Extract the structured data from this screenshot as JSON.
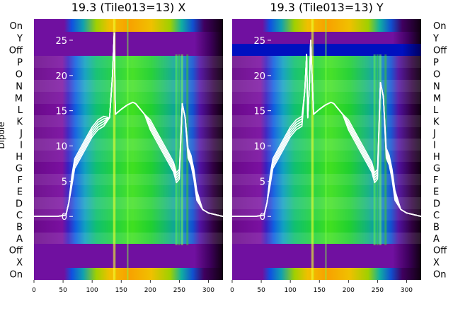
{
  "chart_data": [
    {
      "type": "heatmap",
      "title": "19.3 (Tile013=13) X",
      "ylabel": "Dipole",
      "dipole_labels": [
        "On",
        "Y",
        "Off",
        "P",
        "O",
        "N",
        "M",
        "L",
        "K",
        "J",
        "I",
        "H",
        "G",
        "F",
        "E",
        "D",
        "C",
        "B",
        "A",
        "Off",
        "X",
        "On"
      ],
      "xticks": [
        0,
        50,
        100,
        150,
        200,
        250,
        300
      ],
      "xlim": [
        0,
        325
      ],
      "overlay_yticks": [
        0,
        5,
        10,
        15,
        20,
        25
      ],
      "overlay_ylim": [
        -9,
        28
      ],
      "overlay_line": {
        "color": "#ffffff",
        "x": [
          0,
          20,
          40,
          55,
          60,
          65,
          70,
          80,
          90,
          100,
          110,
          120,
          130,
          135,
          138,
          140,
          150,
          160,
          170,
          175,
          180,
          190,
          200,
          210,
          220,
          230,
          240,
          245,
          250,
          255,
          260,
          265,
          270,
          275,
          280,
          290,
          300,
          325
        ],
        "y": [
          0,
          0,
          0,
          0.2,
          2,
          5,
          7.5,
          9,
          10.5,
          12,
          13,
          13.5,
          14,
          20,
          26,
          14.5,
          15.2,
          15.8,
          16.2,
          16,
          15.5,
          14.5,
          13,
          11.5,
          10,
          8.5,
          7,
          5.5,
          6,
          16,
          14,
          9,
          8,
          6,
          3,
          1,
          0.5,
          0
        ]
      }
    },
    {
      "type": "heatmap",
      "title": "19.3 (Tile013=13) Y",
      "dipole_labels": [
        "On",
        "Y",
        "Off",
        "P",
        "O",
        "N",
        "M",
        "L",
        "K",
        "J",
        "I",
        "H",
        "G",
        "F",
        "E",
        "D",
        "C",
        "B",
        "A",
        "Off",
        "X",
        "On"
      ],
      "xticks": [
        0,
        50,
        100,
        150,
        200,
        250,
        300
      ],
      "xlim": [
        0,
        325
      ],
      "overlay_yticks": [
        0,
        5,
        10,
        15,
        20,
        25
      ],
      "overlay_ylim": [
        -9,
        28
      ],
      "overlay_line": {
        "color": "#ffffff",
        "x": [
          0,
          20,
          40,
          55,
          60,
          65,
          70,
          80,
          90,
          100,
          110,
          120,
          125,
          128,
          130,
          133,
          135,
          140,
          150,
          160,
          170,
          175,
          180,
          190,
          200,
          210,
          220,
          230,
          240,
          245,
          250,
          255,
          260,
          265,
          270,
          275,
          280,
          290,
          300,
          325
        ],
        "y": [
          0,
          0,
          0,
          0.2,
          2,
          5,
          7.5,
          9,
          10.5,
          12,
          13,
          13.5,
          18,
          23,
          14,
          19,
          25,
          14.5,
          15.2,
          15.8,
          16.2,
          16,
          15.5,
          14.5,
          13,
          11.5,
          10,
          8.5,
          7,
          5.5,
          6,
          19,
          17,
          9,
          8,
          6,
          3,
          1,
          0.5,
          0
        ]
      }
    }
  ]
}
